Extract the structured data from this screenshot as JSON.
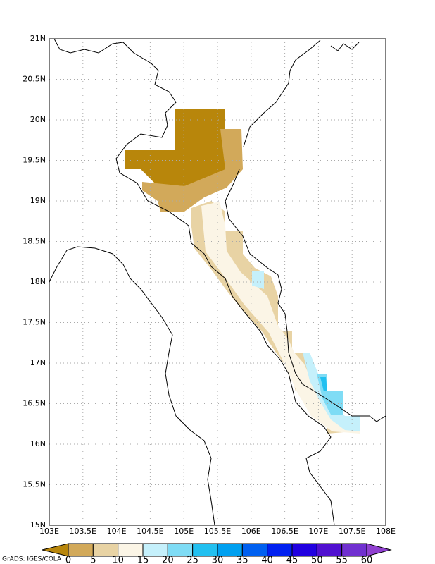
{
  "map": {
    "lat_labels": [
      "21N",
      "20.5N",
      "20N",
      "19.5N",
      "19N",
      "18.5N",
      "18N",
      "17.5N",
      "17N",
      "16.5N",
      "16N",
      "15.5N",
      "15N"
    ],
    "lon_labels": [
      "103E",
      "103.5E",
      "104E",
      "104.5E",
      "105E",
      "105.5E",
      "106E",
      "106.5E",
      "107E",
      "107.5E",
      "108E"
    ],
    "colorbar_labels": [
      "0",
      "5",
      "10",
      "15",
      "20",
      "25",
      "30",
      "35",
      "40",
      "45",
      "50",
      "55",
      "60"
    ],
    "credit": "GrADS: IGES/COLA"
  }
}
